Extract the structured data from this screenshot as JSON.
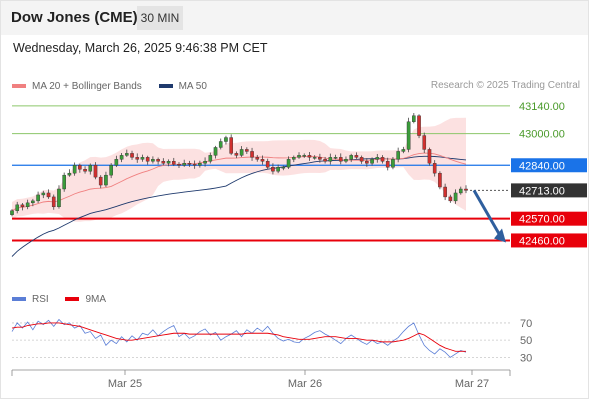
{
  "header": {
    "title": "Dow Jones (CME)",
    "timeframe": "30 MIN"
  },
  "datetime": "Wednesday, March 26, 2025 9:46:38 PM CET",
  "legend": {
    "ma20_label": "MA 20 + Bollinger Bands",
    "ma50_label": "MA 50",
    "rsi_label": "RSI",
    "rsi_ma_label": "9MA",
    "credit": "Research © 2025 Trading Central"
  },
  "colors": {
    "resistance": "#8cc66a",
    "pivot": "#1a73e8",
    "support": "#e8000b",
    "current": "#333333",
    "bollinger_fill": "#fbdcdc",
    "ma20": "#f08080",
    "ma50": "#1f3a6d",
    "rsi": "#5b7ed6",
    "rsi_ma": "#e8000b",
    "arrow": "#2f5f9e",
    "up_candle": "#3a9b3a",
    "down_candle": "#d0302f"
  },
  "chart_data": [
    {
      "type": "candlestick",
      "ylim": [
        42250,
        43190
      ],
      "x_ticks": [
        "Mar 25",
        "Mar 26",
        "Mar 27"
      ],
      "levels": [
        {
          "value": 43140.0,
          "label": "43140.00",
          "kind": "resistance"
        },
        {
          "value": 43000.0,
          "label": "43000.00",
          "kind": "resistance"
        },
        {
          "value": 42840.0,
          "label": "42840.00",
          "kind": "pivot"
        },
        {
          "value": 42713.0,
          "label": "42713.00",
          "kind": "current"
        },
        {
          "value": 42570.0,
          "label": "42570.00",
          "kind": "support"
        },
        {
          "value": 42460.0,
          "label": "42460.00",
          "kind": "support"
        }
      ],
      "series": [
        {
          "name": "MA 20 + Bollinger Bands"
        },
        {
          "name": "MA 50"
        }
      ],
      "closes": [
        42610,
        42640,
        42630,
        42650,
        42660,
        42690,
        42700,
        42680,
        42630,
        42720,
        42790,
        42800,
        42840,
        42820,
        42810,
        42840,
        42780,
        42740,
        42790,
        42840,
        42870,
        42890,
        42900,
        42880,
        42870,
        42880,
        42860,
        42870,
        42860,
        42850,
        42860,
        42845,
        42840,
        42850,
        42845,
        42840,
        42850,
        42860,
        42890,
        42930,
        42960,
        42980,
        42900,
        42890,
        42920,
        42910,
        42880,
        42870,
        42860,
        42830,
        42810,
        42830,
        42830,
        42870,
        42880,
        42890,
        42890,
        42880,
        42880,
        42870,
        42860,
        42880,
        42880,
        42860,
        42870,
        42890,
        42880,
        42860,
        42850,
        42870,
        42880,
        42860,
        42830,
        42870,
        42910,
        42920,
        43060,
        43090,
        42990,
        42920,
        42850,
        42800,
        42730,
        42680,
        42660,
        42700,
        42720,
        42713
      ],
      "projection": {
        "from": 42713,
        "to": 42460
      }
    },
    {
      "type": "line",
      "name": "RSI",
      "ylim": [
        20,
        85
      ],
      "y_ticks": [
        70,
        50,
        30
      ],
      "series": [
        {
          "name": "RSI",
          "values": [
            60,
            70,
            64,
            71,
            62,
            72,
            68,
            73,
            66,
            74,
            68,
            70,
            64,
            67,
            58,
            60,
            52,
            56,
            44,
            50,
            46,
            54,
            48,
            55,
            50,
            58,
            56,
            62,
            55,
            60,
            64,
            67,
            54,
            58,
            52,
            55,
            60,
            63,
            56,
            59,
            50,
            54,
            57,
            61,
            54,
            62,
            58,
            64,
            60,
            66,
            58,
            52,
            49,
            51,
            48,
            47,
            52,
            55,
            59,
            61,
            57,
            54,
            50,
            46,
            52,
            56,
            52,
            48,
            45,
            50,
            46,
            48,
            44,
            49,
            53,
            60,
            66,
            70,
            56,
            44,
            38,
            34,
            40,
            36,
            30,
            34,
            38,
            36
          ]
        },
        {
          "name": "9MA",
          "values": [
            64,
            65,
            65,
            67,
            68,
            69,
            69,
            70,
            70,
            70,
            69,
            68,
            67,
            66,
            64,
            62,
            60,
            58,
            56,
            54,
            52,
            51,
            50,
            50,
            51,
            52,
            53,
            54,
            55,
            56,
            57,
            58,
            58,
            58,
            57,
            57,
            57,
            57,
            57,
            57,
            57,
            57,
            57,
            57,
            57,
            58,
            58,
            58,
            58,
            58,
            57,
            56,
            54,
            53,
            52,
            51,
            51,
            51,
            52,
            53,
            54,
            54,
            54,
            53,
            52,
            52,
            52,
            51,
            50,
            50,
            49,
            48,
            48,
            48,
            49,
            50,
            52,
            55,
            58,
            56,
            52,
            48,
            44,
            41,
            39,
            37,
            37,
            37
          ]
        }
      ]
    }
  ]
}
